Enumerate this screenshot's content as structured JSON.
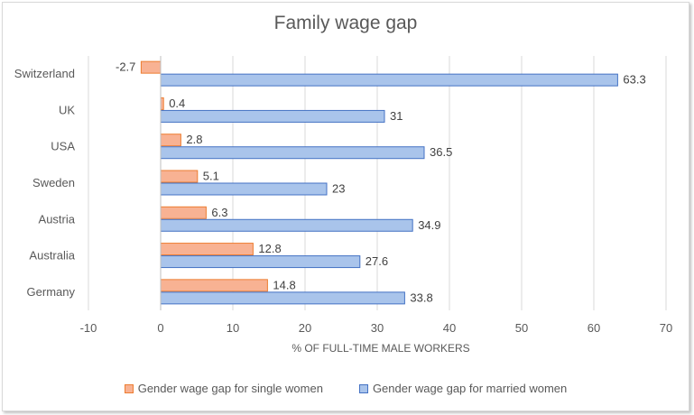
{
  "chart_data": {
    "type": "bar",
    "orientation": "horizontal",
    "title": "Family wage gap",
    "xlabel": "% OF FULL-TIME MALE WORKERS",
    "ylabel": "",
    "xlim": [
      -10,
      70
    ],
    "xticks": [
      -10,
      0,
      10,
      20,
      30,
      40,
      50,
      60,
      70
    ],
    "grid": true,
    "legend_position": "bottom",
    "categories": [
      "Switzerland",
      "UK",
      "USA",
      "Sweden",
      "Austria",
      "Australia",
      "Germany"
    ],
    "series": [
      {
        "name": "Gender wage gap for single women",
        "values": [
          -2.7,
          0.4,
          2.8,
          5.1,
          6.3,
          12.8,
          14.8
        ],
        "fill": "#f8b293",
        "stroke": "#ed7d31"
      },
      {
        "name": "Gender wage gap for married women",
        "values": [
          63.3,
          31,
          36.5,
          23,
          34.9,
          27.6,
          33.8
        ],
        "fill": "#a9c4eb",
        "stroke": "#4472c4"
      }
    ]
  }
}
